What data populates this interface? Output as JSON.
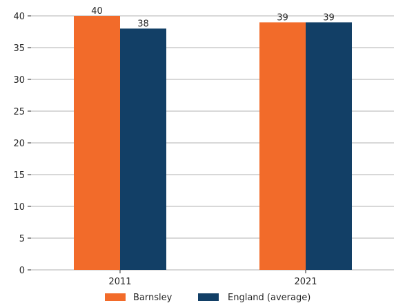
{
  "chart_data": {
    "type": "bar",
    "title": "",
    "xlabel": "",
    "ylabel": "",
    "categories": [
      "2011",
      "2021"
    ],
    "series": [
      {
        "name": "Barnsley",
        "values": [
          40,
          38.98
        ],
        "color": "#f26b2a"
      },
      {
        "name": "England (average)",
        "values": [
          38,
          38.98
        ],
        "color": "#123f66"
      }
    ],
    "data_labels": [
      [
        "40",
        "39"
      ],
      [
        "38",
        "39"
      ]
    ],
    "ylim": [
      0,
      40
    ],
    "yticks": [
      0,
      5,
      10,
      15,
      20,
      25,
      30,
      35,
      40
    ],
    "grid": true,
    "legend_position": "bottom"
  }
}
